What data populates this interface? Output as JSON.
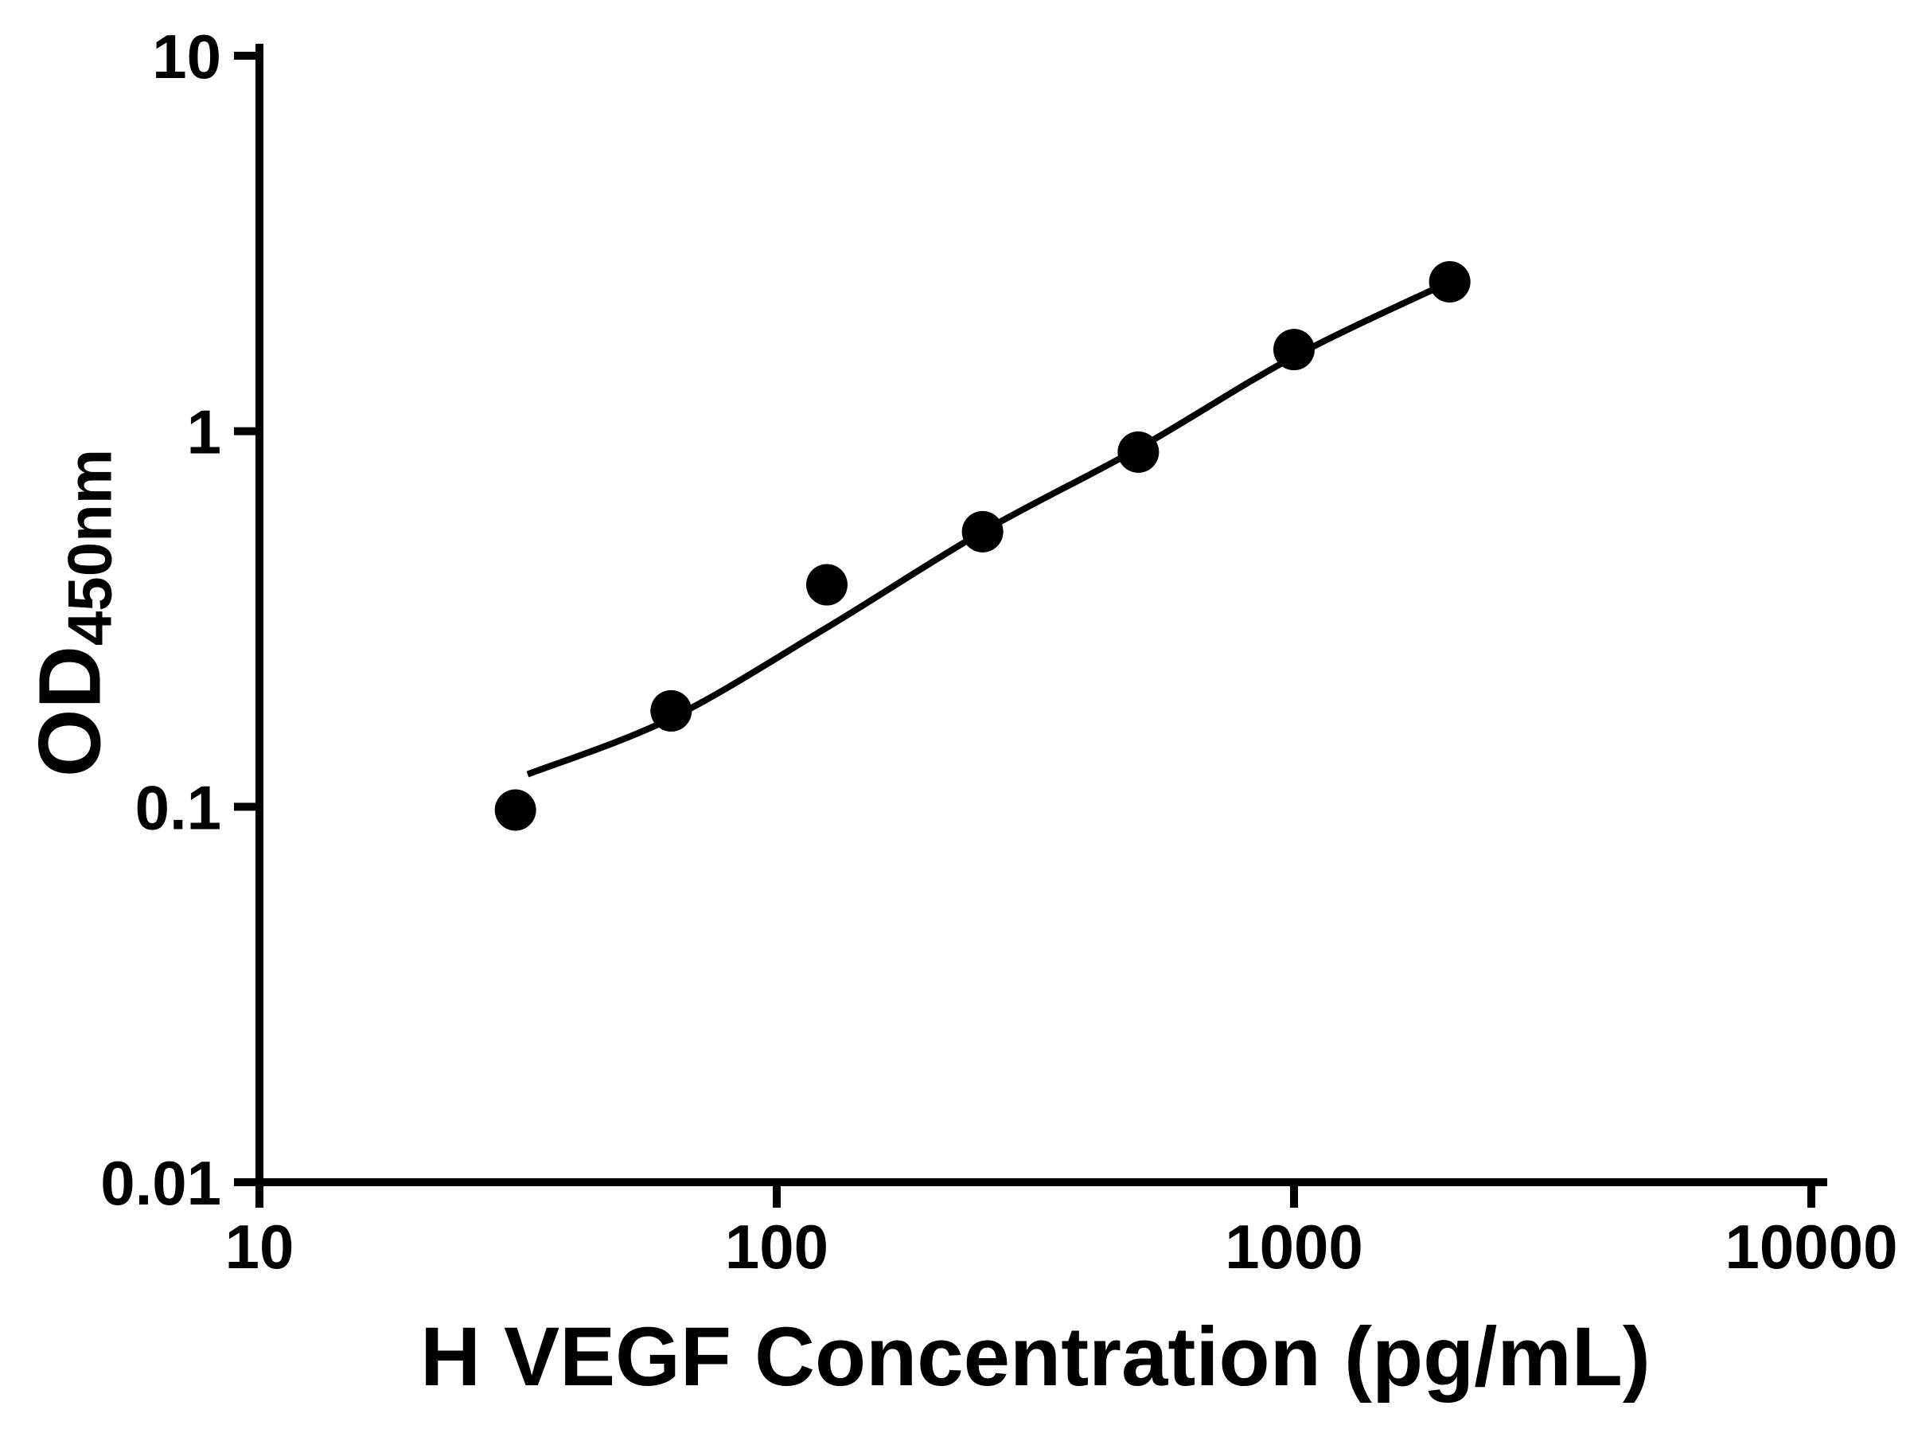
{
  "chart_data": {
    "type": "scatter",
    "title": "",
    "xlabel": "H VEGF Concentration (pg/mL)",
    "ylabel": {
      "main": "OD",
      "sub": "450nm"
    },
    "x_scale": "log",
    "y_scale": "log",
    "xlim": [
      10,
      10000
    ],
    "ylim": [
      0.01,
      10
    ],
    "x_ticks": [
      10,
      100,
      1000,
      10000
    ],
    "x_tick_labels": [
      "10",
      "100",
      "1000",
      "10000"
    ],
    "y_ticks": [
      0.01,
      0.1,
      1,
      10
    ],
    "y_tick_labels": [
      "0.01",
      "0.1",
      "1",
      "10"
    ],
    "grid": false,
    "legend": "none",
    "colors": {
      "axis": "#000000",
      "marker": "#000000",
      "line": "#000000",
      "background": "#ffffff"
    },
    "series": [
      {
        "name": "standard-points",
        "type": "scatter",
        "marker": "filled-circle",
        "color": "#000000",
        "points": [
          {
            "x": 31.25,
            "y": 0.098
          },
          {
            "x": 62.5,
            "y": 0.18
          },
          {
            "x": 125,
            "y": 0.39
          },
          {
            "x": 250,
            "y": 0.54
          },
          {
            "x": 500,
            "y": 0.88
          },
          {
            "x": 1000,
            "y": 1.65
          },
          {
            "x": 2000,
            "y": 2.5
          }
        ]
      },
      {
        "name": "fit-line",
        "type": "line",
        "color": "#000000",
        "points": [
          {
            "x": 33,
            "y": 0.122
          },
          {
            "x": 62.5,
            "y": 0.172
          },
          {
            "x": 125,
            "y": 0.3
          },
          {
            "x": 250,
            "y": 0.54
          },
          {
            "x": 500,
            "y": 0.9
          },
          {
            "x": 1000,
            "y": 1.58
          },
          {
            "x": 2000,
            "y": 2.5
          }
        ]
      }
    ]
  }
}
